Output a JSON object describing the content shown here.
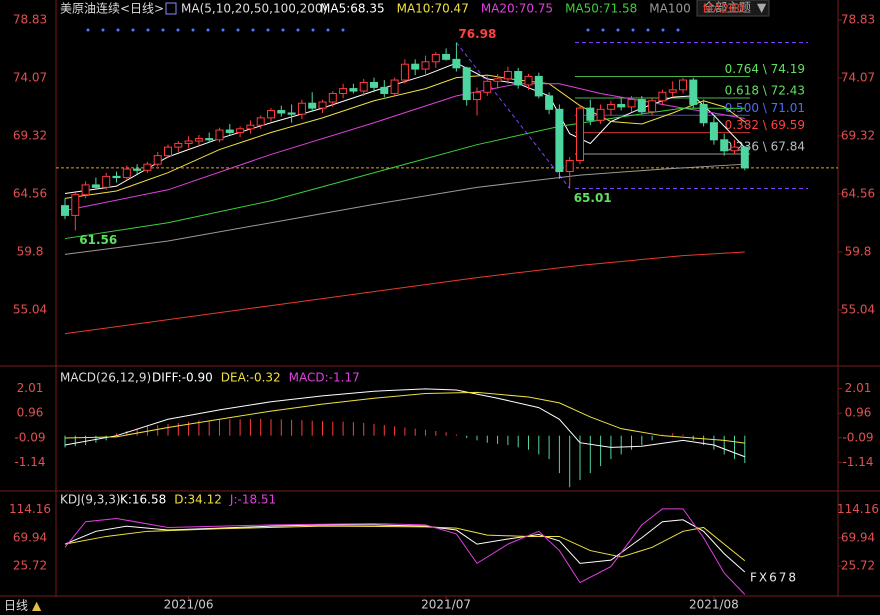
{
  "header": {
    "instrument": "美原油连续<日线>",
    "ma_params": "MA(5,10,20,50,100,200)",
    "theme": "全部主题",
    "period": "日线",
    "watermark": "FX678"
  },
  "chart_data": {
    "type": "candlestick",
    "ylim": [
      50.53,
      79.81
    ],
    "yticks": [
      78.83,
      74.07,
      69.32,
      64.56,
      59.8,
      55.04
    ],
    "ohlc": [
      [
        63.6,
        64.2,
        62.5,
        62.8
      ],
      [
        62.8,
        64.7,
        61.56,
        64.5
      ],
      [
        64.5,
        65.6,
        64.2,
        65.3
      ],
      [
        65.3,
        65.9,
        64.9,
        65.1
      ],
      [
        65.1,
        66.3,
        64.9,
        66.0
      ],
      [
        66.0,
        66.4,
        65.5,
        65.9
      ],
      [
        65.9,
        66.9,
        65.7,
        66.6
      ],
      [
        66.6,
        67.0,
        66.2,
        66.5
      ],
      [
        66.5,
        67.2,
        66.3,
        67.0
      ],
      [
        67.0,
        68.0,
        66.8,
        67.7
      ],
      [
        67.7,
        68.6,
        67.5,
        68.4
      ],
      [
        68.4,
        68.9,
        68.0,
        68.7
      ],
      [
        68.7,
        69.3,
        68.3,
        68.9
      ],
      [
        68.9,
        69.4,
        68.5,
        69.1
      ],
      [
        69.1,
        69.6,
        68.8,
        69.0
      ],
      [
        69.0,
        70.0,
        68.8,
        69.8
      ],
      [
        69.8,
        70.3,
        69.4,
        69.6
      ],
      [
        69.6,
        70.1,
        69.2,
        69.9
      ],
      [
        69.9,
        70.6,
        69.5,
        70.2
      ],
      [
        70.2,
        71.0,
        69.9,
        70.8
      ],
      [
        70.8,
        71.6,
        70.5,
        71.4
      ],
      [
        71.4,
        71.8,
        70.9,
        71.2
      ],
      [
        71.2,
        71.9,
        70.4,
        71.1
      ],
      [
        71.1,
        72.3,
        70.7,
        72.0
      ],
      [
        72.0,
        72.9,
        71.3,
        71.6
      ],
      [
        71.6,
        72.3,
        71.2,
        72.1
      ],
      [
        72.1,
        73.0,
        71.7,
        72.8
      ],
      [
        72.8,
        73.6,
        72.4,
        73.2
      ],
      [
        73.2,
        73.6,
        72.8,
        73.0
      ],
      [
        73.0,
        74.0,
        72.6,
        73.7
      ],
      [
        73.7,
        74.1,
        72.9,
        73.3
      ],
      [
        73.3,
        73.9,
        72.5,
        72.8
      ],
      [
        72.8,
        74.1,
        72.6,
        73.9
      ],
      [
        73.9,
        75.6,
        73.6,
        75.2
      ],
      [
        75.2,
        75.6,
        74.3,
        74.8
      ],
      [
        74.8,
        75.9,
        74.4,
        75.4
      ],
      [
        75.4,
        76.2,
        74.9,
        76.0
      ],
      [
        76.0,
        76.5,
        75.5,
        75.6
      ],
      [
        75.6,
        76.98,
        74.6,
        74.9
      ],
      [
        74.9,
        75.0,
        71.8,
        72.3
      ],
      [
        72.3,
        73.3,
        71.0,
        72.9
      ],
      [
        72.9,
        74.2,
        72.6,
        73.8
      ],
      [
        73.8,
        74.4,
        73.2,
        74.0
      ],
      [
        74.0,
        75.0,
        73.6,
        74.6
      ],
      [
        74.6,
        74.9,
        73.2,
        73.5
      ],
      [
        73.5,
        74.4,
        73.1,
        74.2
      ],
      [
        74.2,
        74.5,
        72.4,
        72.6
      ],
      [
        72.6,
        72.9,
        71.1,
        71.5
      ],
      [
        71.5,
        71.9,
        65.8,
        66.4
      ],
      [
        66.4,
        67.6,
        65.01,
        67.3
      ],
      [
        67.3,
        71.8,
        67.0,
        71.6
      ],
      [
        71.6,
        72.3,
        70.2,
        70.6
      ],
      [
        70.6,
        71.9,
        70.3,
        71.5
      ],
      [
        71.5,
        72.2,
        71.0,
        71.9
      ],
      [
        71.9,
        72.4,
        71.4,
        71.7
      ],
      [
        71.7,
        72.6,
        71.3,
        72.3
      ],
      [
        72.3,
        72.6,
        71.1,
        71.3
      ],
      [
        71.3,
        72.4,
        71.0,
        72.2
      ],
      [
        72.2,
        73.1,
        71.9,
        72.9
      ],
      [
        72.9,
        73.8,
        72.5,
        73.1
      ],
      [
        73.1,
        74.1,
        72.8,
        73.9
      ],
      [
        73.9,
        74.1,
        71.6,
        71.9
      ],
      [
        71.9,
        72.3,
        70.1,
        70.4
      ],
      [
        70.4,
        70.9,
        68.6,
        69.0
      ],
      [
        69.0,
        69.5,
        67.7,
        68.1
      ],
      [
        68.1,
        69.0,
        67.8,
        68.4
      ],
      [
        68.4,
        68.5,
        66.5,
        66.7
      ]
    ],
    "up_color": "#ff3b3b",
    "down_color": "#4ed6a0",
    "series": [
      {
        "name": "MA5:68.35",
        "color": "#ffffff",
        "x": [
          0,
          5,
          10,
          15,
          20,
          25,
          30,
          35,
          38,
          41,
          44,
          47,
          49,
          51,
          53,
          56,
          59,
          61,
          63,
          66
        ],
        "values": [
          64.6,
          65.2,
          67.6,
          69.1,
          70.4,
          71.6,
          73.0,
          74.3,
          75.3,
          74.0,
          73.6,
          72.6,
          69.5,
          68.7,
          70.5,
          71.6,
          72.5,
          72.6,
          71.0,
          68.35
        ]
      },
      {
        "name": "MA10:70.47",
        "color": "#f0e040",
        "x": [
          0,
          5,
          10,
          15,
          20,
          25,
          30,
          35,
          38,
          41,
          44,
          47,
          50,
          53,
          56,
          59,
          62,
          64,
          66
        ],
        "values": [
          64.2,
          64.8,
          66.3,
          68.2,
          69.6,
          70.8,
          72.2,
          73.2,
          74.1,
          74.3,
          73.9,
          73.6,
          71.8,
          70.5,
          70.3,
          71.2,
          72.2,
          71.7,
          70.47
        ]
      },
      {
        "name": "MA20:70.75",
        "color": "#e040e0",
        "x": [
          0,
          10,
          20,
          30,
          38,
          44,
          48,
          52,
          56,
          60,
          63,
          66
        ],
        "values": [
          63.2,
          64.9,
          67.8,
          70.4,
          72.6,
          73.6,
          73.6,
          72.8,
          72.2,
          71.6,
          71.2,
          70.75
        ]
      },
      {
        "name": "MA50:71.58",
        "color": "#3cd03c",
        "x": [
          0,
          10,
          20,
          30,
          40,
          48,
          55,
          60,
          66
        ],
        "values": [
          60.9,
          62.2,
          64.0,
          66.3,
          68.6,
          70.1,
          71.0,
          71.6,
          71.58
        ]
      },
      {
        "name": "MA100",
        "color": "#9a9a9a",
        "x": [
          0,
          10,
          20,
          30,
          40,
          50,
          58,
          66
        ],
        "values": [
          59.6,
          60.7,
          62.2,
          63.7,
          65.1,
          66.1,
          66.6,
          67.0
        ]
      },
      {
        "name": "MA200",
        "color": "#e83a2a",
        "x": [
          0,
          20,
          40,
          50,
          60,
          66
        ],
        "values": [
          53.1,
          55.4,
          57.7,
          58.7,
          59.5,
          59.8
        ]
      }
    ],
    "fibonacci": [
      {
        "label": "0.764 \\ 74.19",
        "value": 74.19,
        "color": "#5fe05f"
      },
      {
        "label": "0.618 \\ 72.43",
        "value": 72.43,
        "color": "#5fe05f"
      },
      {
        "label": "0.500 \\ 71.01",
        "value": 71.01,
        "color": "#4a6cff"
      },
      {
        "label": "0.382 \\ 69.59",
        "value": 69.59,
        "color": "#ff4040"
      },
      {
        "label": "0.236 \\ 67.84",
        "value": 67.84,
        "color": "#bbbbbb"
      }
    ],
    "annotations": [
      {
        "text": "76.98",
        "value": 76.98,
        "index": 38,
        "color": "#ff4040"
      },
      {
        "text": "65.01",
        "value": 65.01,
        "index": 49,
        "color": "#5fe05f"
      },
      {
        "text": "61.56",
        "value": 61.56,
        "index": 1,
        "color": "#5fe05f"
      }
    ],
    "x_labels": [
      {
        "index": 12,
        "label": "2021/06"
      },
      {
        "index": 37,
        "label": "2021/07"
      },
      {
        "index": 63,
        "label": "2021/08"
      }
    ],
    "macd": {
      "title": "MACD(26,12,9)",
      "legend": [
        {
          "text": "DIFF:-0.90",
          "color": "#ffffff"
        },
        {
          "text": "DEA:-0.32",
          "color": "#f0e040"
        },
        {
          "text": "MACD:-1.17",
          "color": "#e040e0"
        }
      ],
      "ylim": [
        -2.32,
        2.72
      ],
      "yticks": [
        2.01,
        0.96,
        -0.09,
        -1.14
      ],
      "hist": [
        -0.5,
        -0.45,
        -0.4,
        -0.3,
        -0.2,
        0.1,
        0.2,
        0.3,
        0.4,
        0.45,
        0.5,
        0.55,
        0.6,
        0.65,
        0.65,
        0.7,
        0.7,
        0.7,
        0.72,
        0.72,
        0.7,
        0.7,
        0.68,
        0.66,
        0.64,
        0.62,
        0.6,
        0.6,
        0.58,
        0.55,
        0.5,
        0.45,
        0.4,
        0.35,
        0.3,
        0.25,
        0.2,
        0.15,
        0.05,
        -0.1,
        -0.2,
        -0.3,
        -0.35,
        -0.4,
        -0.5,
        -0.6,
        -0.8,
        -1.0,
        -1.6,
        -2.2,
        -1.9,
        -1.6,
        -1.3,
        -1.0,
        -0.8,
        -0.6,
        -0.4,
        -0.2,
        0.05,
        0.1,
        0.05,
        -0.2,
        -0.4,
        -0.6,
        -0.8,
        -1.0,
        -1.17
      ],
      "lines": [
        {
          "color": "#ffffff",
          "x": [
            0,
            5,
            10,
            15,
            20,
            25,
            30,
            35,
            38,
            42,
            46,
            48,
            50,
            53,
            56,
            60,
            63,
            66
          ],
          "values": [
            -0.4,
            0.0,
            0.7,
            1.1,
            1.45,
            1.7,
            1.9,
            2.0,
            1.95,
            1.6,
            1.2,
            0.7,
            -0.3,
            -0.5,
            -0.45,
            -0.2,
            -0.4,
            -0.9
          ]
        },
        {
          "color": "#f0e040",
          "x": [
            0,
            5,
            10,
            15,
            20,
            25,
            30,
            35,
            40,
            45,
            48,
            51,
            54,
            58,
            61,
            64,
            66
          ],
          "values": [
            -0.1,
            -0.05,
            0.35,
            0.7,
            1.05,
            1.35,
            1.6,
            1.8,
            1.85,
            1.65,
            1.4,
            0.8,
            0.3,
            0.0,
            -0.1,
            -0.2,
            -0.32
          ]
        }
      ]
    },
    "kdj": {
      "title": "KDJ(9,3,3)",
      "legend": [
        {
          "text": "K:16.58",
          "color": "#ffffff"
        },
        {
          "text": "D:34.12",
          "color": "#f0e040"
        },
        {
          "text": "J:-18.51",
          "color": "#e040e0"
        }
      ],
      "ylim": [
        -19.3,
        133.5
      ],
      "yticks": [
        114.16,
        69.94,
        25.72
      ],
      "lines": [
        {
          "color": "#ffffff",
          "x": [
            0,
            3,
            6,
            10,
            15,
            20,
            25,
            30,
            35,
            38,
            40,
            43,
            46,
            48,
            50,
            53,
            56,
            58,
            60,
            62,
            64,
            66
          ],
          "values": [
            60,
            80,
            88,
            82,
            85,
            88,
            90,
            90,
            88,
            82,
            60,
            68,
            75,
            65,
            30,
            35,
            70,
            95,
            98,
            80,
            45,
            16.58
          ]
        },
        {
          "color": "#f0e040",
          "x": [
            0,
            4,
            8,
            15,
            25,
            35,
            38,
            41,
            45,
            48,
            51,
            54,
            57,
            60,
            62,
            64,
            66
          ],
          "values": [
            60,
            72,
            80,
            84,
            88,
            87,
            85,
            74,
            72,
            72,
            50,
            40,
            55,
            80,
            86,
            60,
            34.12
          ]
        },
        {
          "color": "#e040e0",
          "x": [
            0,
            2,
            5,
            10,
            20,
            30,
            35,
            38,
            40,
            43,
            46,
            48,
            50,
            53,
            56,
            58,
            60,
            62,
            64,
            66
          ],
          "values": [
            55,
            95,
            100,
            86,
            90,
            92,
            90,
            76,
            30,
            60,
            80,
            50,
            0,
            25,
            90,
            115,
            115,
            70,
            15,
            -18.51
          ]
        }
      ]
    }
  }
}
